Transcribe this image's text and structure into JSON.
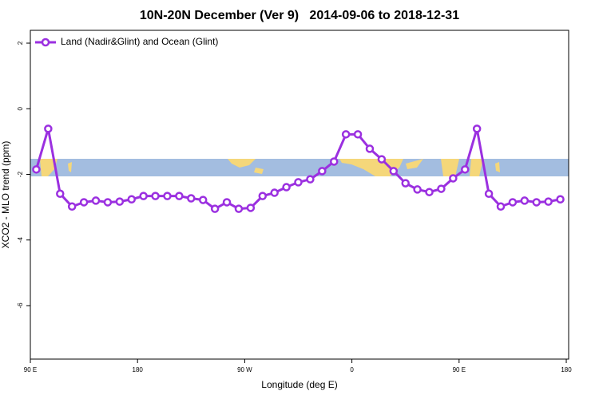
{
  "chart_data": {
    "type": "line",
    "title": "10N-20N December (Ver 9)   2014-09-06 to 2018-12-31",
    "x_label": "Longitude (deg E)",
    "y_label": "XCO2 - MLO trend (ppm)",
    "x": [
      95,
      105,
      115,
      125,
      135,
      145,
      155,
      165,
      175,
      185,
      195,
      205,
      215,
      225,
      235,
      245,
      255,
      265,
      275,
      285,
      295,
      305,
      315,
      325,
      335,
      345,
      355,
      365,
      375,
      385,
      395,
      405,
      415,
      425,
      435,
      445,
      455,
      465,
      475,
      485,
      495,
      505,
      515,
      525,
      535
    ],
    "series": [
      {
        "name": "Land (Nadir&Glint) and Ocean (Glint)",
        "color": "#9b30e0",
        "values": [
          -1.85,
          -0.61,
          -2.59,
          -2.98,
          -2.85,
          -2.8,
          -2.85,
          -2.83,
          -2.76,
          -2.66,
          -2.66,
          -2.66,
          -2.66,
          -2.73,
          -2.78,
          -3.05,
          -2.85,
          -3.05,
          -3.02,
          -2.66,
          -2.56,
          -2.39,
          -2.24,
          -2.15,
          -1.9,
          -1.61,
          -0.78,
          -0.78,
          -1.22,
          -1.54,
          -1.9,
          -2.27,
          -2.46,
          -2.54,
          -2.44,
          -2.12,
          -1.85,
          -0.61,
          -2.59,
          -2.98,
          -2.85,
          -2.8,
          -2.85,
          -2.83,
          -2.76
        ]
      }
    ],
    "xlim": [
      90,
      542
    ],
    "ylim": [
      -7.63,
      2.39
    ],
    "xticks": [
      {
        "value": 90,
        "label": "90 E"
      },
      180,
      {
        "value": 270,
        "label": "90 W"
      },
      {
        "value": 360,
        "label": "0"
      },
      {
        "value": 450,
        "label": "90 E"
      },
      {
        "value": 540,
        "label": "180"
      }
    ],
    "yticks": [
      -6,
      -4,
      -2,
      0,
      2
    ],
    "legend": "top-left"
  }
}
